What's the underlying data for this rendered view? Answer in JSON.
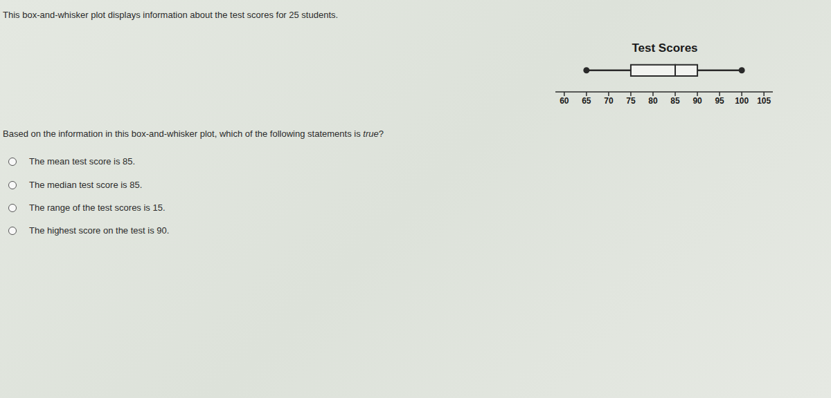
{
  "intro": "This box-and-whisker plot displays information about the test scores for 25 students.",
  "chart_data": {
    "type": "box",
    "title": "Test Scores",
    "min": 65,
    "q1": 75,
    "median": 85,
    "q3": 90,
    "max": 100,
    "xlim": [
      58,
      107
    ],
    "xticks": [
      60,
      65,
      70,
      75,
      80,
      85,
      90,
      95,
      100,
      105
    ]
  },
  "question": {
    "prompt": [
      "Based on the information in this box-and-whisker plot, which of the following statements is ",
      "true",
      "?"
    ],
    "options": [
      "The mean test score is 85.",
      "The median test score is 85.",
      "The range of the test scores is 15.",
      "The highest score on the test is 90."
    ]
  }
}
